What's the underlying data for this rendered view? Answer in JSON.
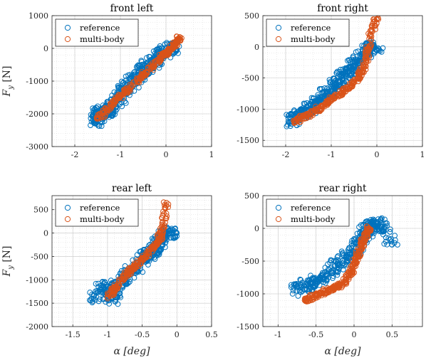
{
  "colors": {
    "reference": "#0072BD",
    "multibody": "#D95319"
  },
  "chart_data": [
    {
      "type": "scatter",
      "title": "front left",
      "xlim": [
        -2.5,
        1
      ],
      "ylim": [
        -3000,
        1000
      ],
      "xticks": [
        -2,
        -1,
        0,
        1
      ],
      "xticklabels": [
        "-2",
        "-1",
        "0",
        "1"
      ],
      "yticks": [
        -3000,
        -2000,
        -1000,
        0,
        1000
      ],
      "yticklabels": [
        "-3000",
        "-2000",
        "-1000",
        "0",
        "1000"
      ],
      "grid": true,
      "minor_grid": true,
      "legend_position": "top-left",
      "series": [
        {
          "name": "reference",
          "marker": "open-circle",
          "x": [
            -1.55,
            -1.5,
            -1.45,
            -1.4,
            -1.35,
            -1.3,
            -1.25,
            -1.2,
            -1.1,
            -1.0,
            -0.9,
            -0.8,
            -0.7,
            -0.6,
            -0.5,
            -0.4,
            -0.3,
            -0.2,
            -0.1,
            0.0,
            0.1,
            0.2
          ],
          "y": [
            -2300,
            -2050,
            -1950,
            -2100,
            -1900,
            -1850,
            -1950,
            -1750,
            -1600,
            -1450,
            -1250,
            -1100,
            -950,
            -800,
            -650,
            -550,
            -450,
            -300,
            -200,
            -100,
            0,
            50
          ]
        },
        {
          "name": "multi-body",
          "marker": "open-circle",
          "x": [
            -1.5,
            -1.3,
            -1.1,
            -0.9,
            -0.7,
            -0.5,
            -0.3,
            -0.1,
            0.0,
            0.1,
            0.2,
            0.3
          ],
          "y": [
            -2150,
            -1900,
            -1600,
            -1350,
            -1100,
            -800,
            -550,
            -250,
            -150,
            0,
            150,
            350
          ]
        }
      ]
    },
    {
      "type": "scatter",
      "title": "front right",
      "xlim": [
        -2.5,
        1
      ],
      "ylim": [
        -1600,
        500
      ],
      "xticks": [
        -2,
        -1,
        0,
        1
      ],
      "xticklabels": [
        "-2",
        "-1",
        "0",
        "1"
      ],
      "yticks": [
        -1500,
        -1000,
        -500,
        0,
        500
      ],
      "yticklabels": [
        "-1500",
        "-1000",
        "-500",
        "0",
        "500"
      ],
      "grid": true,
      "minor_grid": true,
      "legend_position": "top-left",
      "series": [
        {
          "name": "reference",
          "marker": "open-circle",
          "x": [
            -1.9,
            -1.8,
            -1.7,
            -1.6,
            -1.5,
            -1.4,
            -1.3,
            -1.2,
            -1.1,
            -1.0,
            -0.9,
            -0.8,
            -0.7,
            -0.6,
            -0.5,
            -0.4,
            -0.3,
            -0.2,
            -0.1,
            0.0
          ],
          "y": [
            -1200,
            -1150,
            -1050,
            -1100,
            -1000,
            -950,
            -900,
            -800,
            -750,
            -700,
            -600,
            -550,
            -450,
            -400,
            -300,
            -250,
            -150,
            -50,
            0,
            -50
          ]
        },
        {
          "name": "multi-body",
          "marker": "open-circle",
          "x": [
            -1.8,
            -1.6,
            -1.4,
            -1.2,
            -1.0,
            -0.8,
            -0.6,
            -0.4,
            -0.3,
            -0.2,
            -0.15,
            0.0
          ],
          "y": [
            -1200,
            -1120,
            -1050,
            -950,
            -850,
            -750,
            -650,
            -500,
            -350,
            -100,
            200,
            450
          ]
        }
      ]
    },
    {
      "type": "scatter",
      "title": "rear left",
      "xlim": [
        -1.8,
        0.5
      ],
      "ylim": [
        -2000,
        800
      ],
      "xticks": [
        -1.5,
        -1,
        -0.5,
        0,
        0.5
      ],
      "xticklabels": [
        "-1.5",
        "-1",
        "-0.5",
        "0",
        "0.5"
      ],
      "yticks": [
        -2000,
        -1500,
        -1000,
        -500,
        0,
        500
      ],
      "yticklabels": [
        "-2000",
        "-1500",
        "-1000",
        "-500",
        "0",
        "500"
      ],
      "xlabel": "α [deg]",
      "grid": true,
      "minor_grid": true,
      "legend_position": "top-left",
      "series": [
        {
          "name": "reference",
          "marker": "open-circle",
          "x": [
            -1.2,
            -1.1,
            -1.0,
            -0.95,
            -0.9,
            -0.85,
            -0.8,
            -0.7,
            -0.6,
            -0.5,
            -0.45,
            -0.4,
            -0.35,
            -0.3,
            -0.25,
            -0.2,
            -0.1,
            0.0
          ],
          "y": [
            -1400,
            -1200,
            -1150,
            -1400,
            -1300,
            -1100,
            -1000,
            -850,
            -750,
            -600,
            -500,
            -450,
            -400,
            -300,
            -200,
            -100,
            0,
            0
          ]
        },
        {
          "name": "multi-body",
          "marker": "open-circle",
          "x": [
            -1.0,
            -0.9,
            -0.8,
            -0.7,
            -0.6,
            -0.5,
            -0.4,
            -0.3,
            -0.25,
            -0.2,
            -0.15
          ],
          "y": [
            -1400,
            -1200,
            -1000,
            -850,
            -700,
            -550,
            -400,
            -250,
            -100,
            100,
            650
          ]
        }
      ]
    },
    {
      "type": "scatter",
      "title": "rear right",
      "xlim": [
        -1.2,
        0.9
      ],
      "ylim": [
        -1500,
        500
      ],
      "xticks": [
        -1,
        -0.5,
        0,
        0.5
      ],
      "xticklabels": [
        "-1",
        "-0.5",
        "0",
        "0.5"
      ],
      "yticks": [
        -1500,
        -1000,
        -500,
        0,
        500
      ],
      "yticklabels": [
        "-1500",
        "-1000",
        "-500",
        "0",
        "500"
      ],
      "xlabel": "α [deg]",
      "grid": true,
      "minor_grid": true,
      "legend_position": "top-left",
      "series": [
        {
          "name": "reference",
          "marker": "open-circle",
          "x": [
            -0.8,
            -0.7,
            -0.6,
            -0.5,
            -0.4,
            -0.3,
            -0.2,
            -0.1,
            0.0,
            0.05,
            0.1,
            0.15,
            0.2,
            0.25,
            0.3,
            0.4,
            0.5
          ],
          "y": [
            -950,
            -900,
            -850,
            -800,
            -750,
            -650,
            -550,
            -450,
            -350,
            -250,
            -150,
            -50,
            0,
            50,
            100,
            0,
            -250
          ]
        },
        {
          "name": "multi-body",
          "marker": "open-circle",
          "x": [
            -0.65,
            -0.55,
            -0.45,
            -0.35,
            -0.25,
            -0.15,
            -0.05,
            0.0,
            0.05,
            0.1,
            0.15,
            0.2
          ],
          "y": [
            -1100,
            -1050,
            -1000,
            -950,
            -900,
            -850,
            -700,
            -550,
            -400,
            -250,
            -100,
            0
          ]
        }
      ]
    }
  ],
  "figure": {
    "ylabel": "F_y [N]"
  }
}
